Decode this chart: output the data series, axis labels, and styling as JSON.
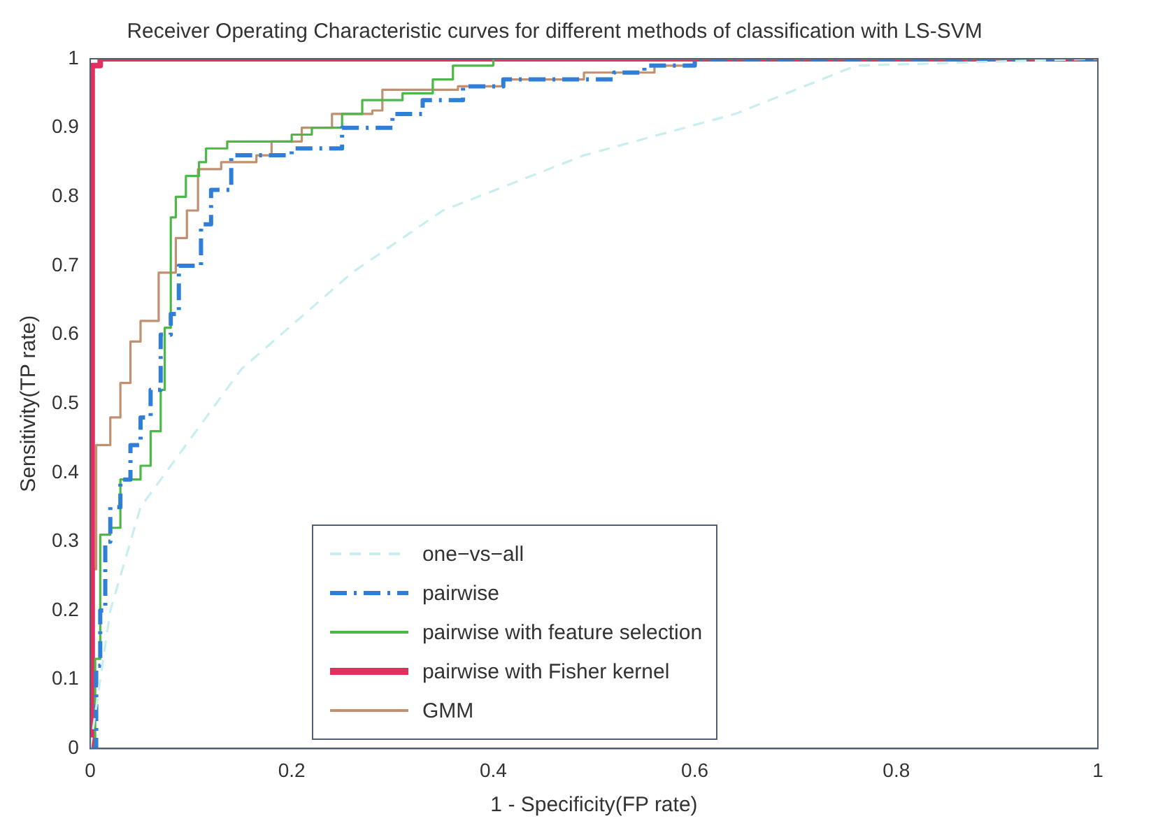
{
  "chart_data": {
    "type": "step",
    "title": "Receiver Operating Characteristic curves for different methods of classification with LS-SVM",
    "xlabel": "1 - Specificity(FP rate)",
    "ylabel": "Sensitivity(TP rate)",
    "xlim": [
      0,
      1
    ],
    "ylim": [
      0,
      1
    ],
    "xticks": [
      0,
      0.2,
      0.4,
      0.6,
      0.8,
      1
    ],
    "yticks": [
      0,
      0.1,
      0.2,
      0.3,
      0.4,
      0.5,
      0.6,
      0.7,
      0.8,
      0.9,
      1
    ],
    "grid": false,
    "legend": "bottom",
    "series": [
      {
        "name": "one−vs−all",
        "type": "line",
        "color": "#c8eef0",
        "line_style": "dashed",
        "x": [
          0,
          0.02,
          0.05,
          0.1,
          0.15,
          0.26,
          0.35,
          0.49,
          0.64,
          0.76,
          1
        ],
        "values": [
          0,
          0.2,
          0.35,
          0.45,
          0.55,
          0.69,
          0.78,
          0.86,
          0.92,
          0.99,
          1
        ]
      },
      {
        "name": "pairwise",
        "color": "#2f7fd8",
        "line_style": "dashdot",
        "x": [
          0,
          0.006,
          0.01,
          0.015,
          0.02,
          0.03,
          0.04,
          0.05,
          0.06,
          0.07,
          0.08,
          0.088,
          0.11,
          0.12,
          0.14,
          0.2,
          0.25,
          0.3,
          0.33,
          0.37,
          0.41,
          0.52,
          0.55,
          0.6,
          1
        ],
        "values": [
          0,
          0.12,
          0.2,
          0.3,
          0.35,
          0.39,
          0.44,
          0.48,
          0.52,
          0.6,
          0.63,
          0.7,
          0.76,
          0.81,
          0.86,
          0.87,
          0.9,
          0.92,
          0.94,
          0.96,
          0.97,
          0.98,
          0.99,
          1,
          1
        ]
      },
      {
        "name": "pairwise with feature selection",
        "color": "#4cb848",
        "line_style": "solid",
        "x": [
          0,
          0.005,
          0.01,
          0.02,
          0.03,
          0.05,
          0.06,
          0.07,
          0.074,
          0.08,
          0.085,
          0.095,
          0.108,
          0.115,
          0.136,
          0.2,
          0.22,
          0.25,
          0.27,
          0.31,
          0.34,
          0.36,
          0.4,
          1
        ],
        "values": [
          0,
          0.13,
          0.31,
          0.32,
          0.39,
          0.41,
          0.46,
          0.52,
          0.61,
          0.77,
          0.8,
          0.83,
          0.85,
          0.87,
          0.88,
          0.89,
          0.9,
          0.92,
          0.94,
          0.95,
          0.97,
          0.99,
          1,
          1
        ]
      },
      {
        "name": "pairwise with Fisher kernel",
        "color": "#e03060",
        "line_style": "solid",
        "x": [
          0,
          0.002,
          0.01,
          1
        ],
        "values": [
          0,
          0.99,
          1,
          1
        ]
      },
      {
        "name": "GMM",
        "color": "#c09070",
        "line_style": "solid",
        "x": [
          0,
          0.003,
          0.006,
          0.02,
          0.03,
          0.04,
          0.05,
          0.068,
          0.085,
          0.096,
          0.107,
          0.13,
          0.165,
          0.18,
          0.21,
          0.24,
          0.28,
          0.29,
          0.365,
          0.41,
          0.49,
          0.56,
          0.6,
          1
        ],
        "values": [
          0,
          0.26,
          0.44,
          0.48,
          0.53,
          0.59,
          0.62,
          0.69,
          0.74,
          0.78,
          0.84,
          0.85,
          0.86,
          0.88,
          0.9,
          0.92,
          0.925,
          0.955,
          0.96,
          0.97,
          0.98,
          0.99,
          1,
          1
        ]
      }
    ]
  }
}
